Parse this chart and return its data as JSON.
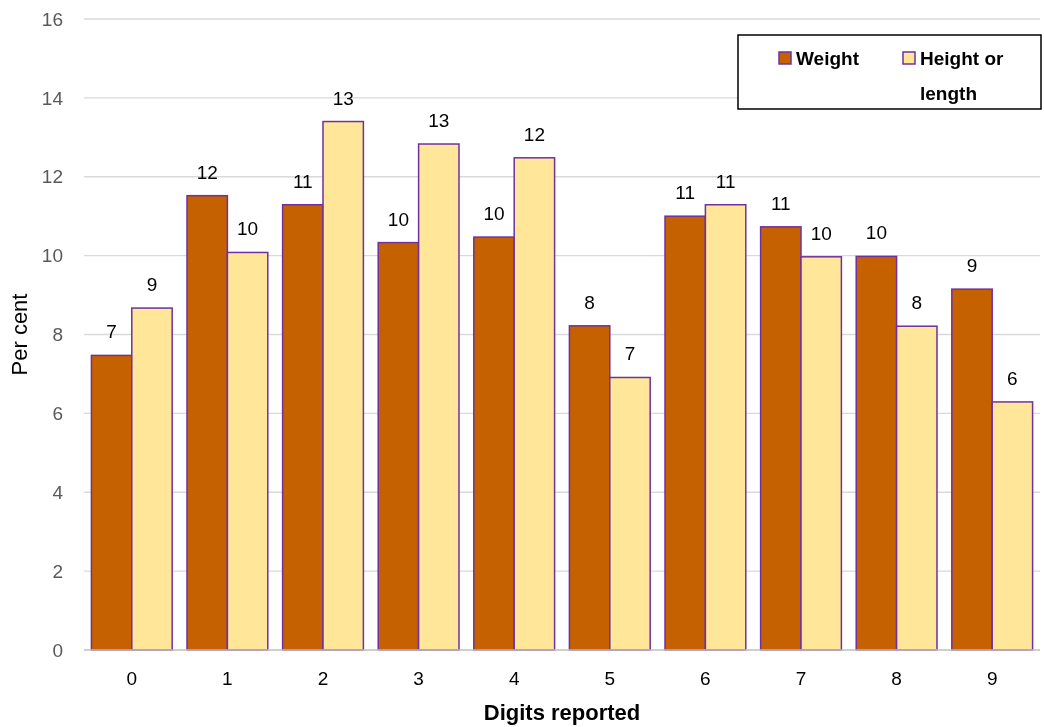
{
  "chart_data": {
    "type": "bar",
    "xlabel": "Digits reported",
    "ylabel": "Per cent",
    "categories": [
      "0",
      "1",
      "2",
      "3",
      "4",
      "5",
      "6",
      "7",
      "8",
      "9"
    ],
    "series": [
      {
        "name": "Weight",
        "color": "#c66100",
        "values": [
          7.47,
          11.52,
          11.29,
          10.33,
          10.47,
          8.22,
          11.0,
          10.73,
          9.98,
          9.15
        ],
        "value_labels": [
          "7",
          "12",
          "11",
          "10",
          "10",
          "8",
          "11",
          "11",
          "10",
          "9"
        ]
      },
      {
        "name": "Height or length",
        "color": "#ffe699",
        "values": [
          8.67,
          10.08,
          13.4,
          12.83,
          12.48,
          6.91,
          11.29,
          9.97,
          8.21,
          6.29
        ],
        "value_labels": [
          "9",
          "10",
          "13",
          "13",
          "12",
          "7",
          "11",
          "10",
          "8",
          "6"
        ]
      }
    ],
    "ylim": [
      0,
      16
    ],
    "yticks": [
      0,
      2,
      4,
      6,
      8,
      10,
      12,
      14,
      16
    ],
    "grid": "y",
    "legend": "top right"
  }
}
